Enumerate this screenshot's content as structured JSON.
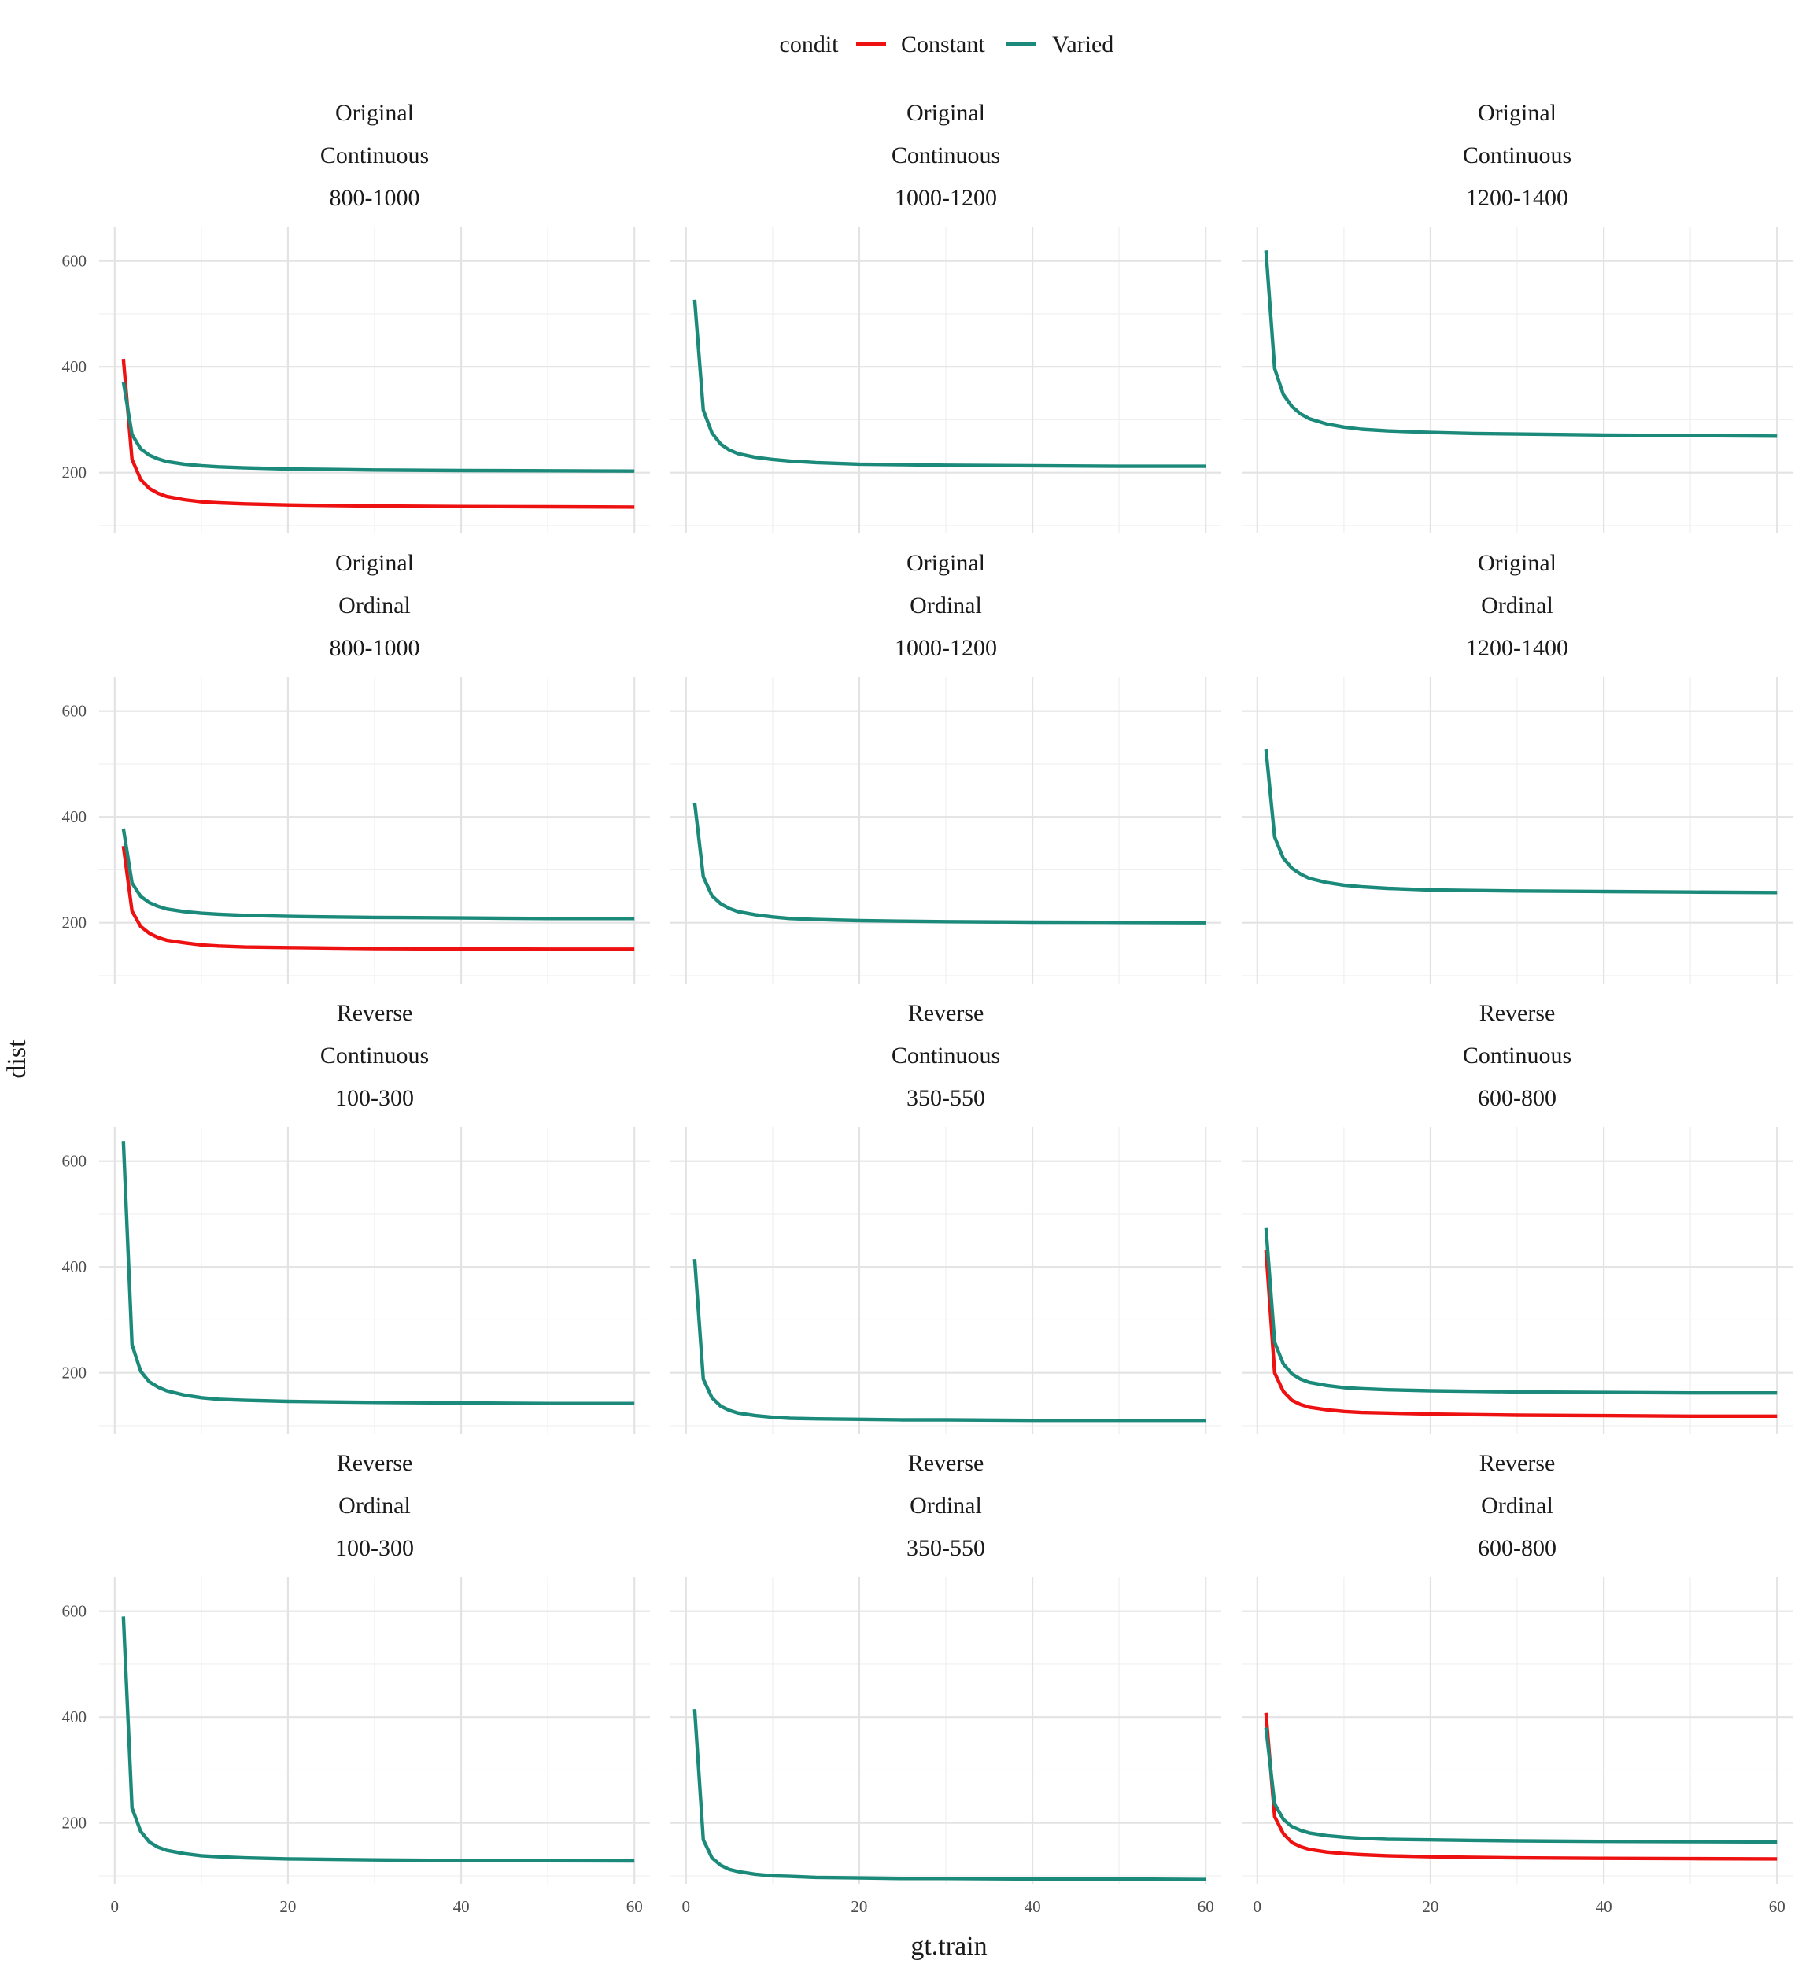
{
  "legend": {
    "title": "condit",
    "entries": [
      {
        "label": "Constant",
        "color": "#ee1111"
      },
      {
        "label": "Varied",
        "color": "#1b8a7a"
      }
    ]
  },
  "axes": {
    "x_title": "gt.train",
    "y_title": "dist",
    "x_ticks": [
      0,
      20,
      40,
      60
    ],
    "y_ticks": [
      200,
      400,
      600
    ]
  },
  "chart_data": {
    "type": "line",
    "layout": "facet-grid 4 rows x 3 columns",
    "xlabel": "gt.train",
    "ylabel": "dist",
    "xlim": [
      -1.8,
      61.8
    ],
    "ylim": [
      85,
      665
    ],
    "grid": true,
    "legend_position": "top",
    "legend_title": "condit",
    "series_names": [
      "Constant",
      "Varied"
    ],
    "x": [
      1,
      2,
      3,
      4,
      5,
      6,
      8,
      10,
      12,
      15,
      20,
      25,
      30,
      40,
      50,
      60
    ],
    "panels": [
      {
        "strip": [
          "Original",
          "Continuous",
          "800-1000"
        ],
        "series": [
          {
            "name": "Constant",
            "values": [
              415,
              225,
              187,
              170,
              161,
              155,
              149,
              145,
              143,
              141,
              139,
              138,
              137,
              136,
              135.5,
              135
            ]
          },
          {
            "name": "Varied",
            "values": [
              372,
              272,
              245,
              233,
              226,
              221,
              216,
              213,
              211,
              209,
              207,
              206,
              205,
              204,
              203.5,
              203
            ]
          }
        ]
      },
      {
        "strip": [
          "Original",
          "Continuous",
          "1000-1200"
        ],
        "series": [
          {
            "name": "Varied",
            "values": [
              527,
              318,
              275,
              254,
              243,
              236,
              229,
              225,
              222,
              219,
              216,
              215,
              214,
              213,
              212,
              212
            ]
          }
        ]
      },
      {
        "strip": [
          "Original",
          "Continuous",
          "1200-1400"
        ],
        "series": [
          {
            "name": "Varied",
            "values": [
              620,
              397,
              348,
              325,
              311,
              302,
              292,
              286,
              282,
              279,
              276,
              274,
              273,
              271,
              270,
              269
            ]
          }
        ]
      },
      {
        "strip": [
          "Original",
          "Ordinal",
          "800-1000"
        ],
        "series": [
          {
            "name": "Constant",
            "values": [
              345,
              222,
              193,
              180,
              172,
              167,
              162,
              158,
              156,
              154,
              153,
              152,
              151,
              150.5,
              150,
              150
            ]
          },
          {
            "name": "Varied",
            "values": [
              378,
              275,
              250,
              238,
              231,
              226,
              221,
              218,
              216,
              214,
              212,
              211,
              210,
              209,
              208,
              208
            ]
          }
        ]
      },
      {
        "strip": [
          "Original",
          "Ordinal",
          "1000-1200"
        ],
        "series": [
          {
            "name": "Varied",
            "values": [
              427,
              287,
              251,
              236,
              227,
              221,
              215,
              211,
              208,
              206,
              204,
              203,
              202,
              201,
              200.5,
              200
            ]
          }
        ]
      },
      {
        "strip": [
          "Original",
          "Ordinal",
          "1200-1400"
        ],
        "series": [
          {
            "name": "Varied",
            "values": [
              528,
              362,
              322,
              303,
              292,
              284,
              276,
              271,
              268,
              265,
              262,
              261,
              260,
              259,
              258,
              257
            ]
          }
        ]
      },
      {
        "strip": [
          "Reverse",
          "Continuous",
          "100-300"
        ],
        "series": [
          {
            "name": "Varied",
            "values": [
              638,
              253,
              203,
              183,
              173,
              166,
              158,
              153,
              150,
              148,
              146,
              145,
              144,
              143,
              142,
              142
            ]
          }
        ]
      },
      {
        "strip": [
          "Reverse",
          "Continuous",
          "350-550"
        ],
        "series": [
          {
            "name": "Varied",
            "values": [
              415,
              188,
              153,
              137,
              129,
              124,
              119,
              116,
              114,
              113,
              112,
              111,
              111,
              110,
              110,
              110
            ]
          }
        ]
      },
      {
        "strip": [
          "Reverse",
          "Continuous",
          "600-800"
        ],
        "series": [
          {
            "name": "Constant",
            "values": [
              433,
              200,
              165,
              148,
              140,
              135,
              130,
              127,
              125,
              124,
              122,
              121,
              120,
              119,
              118,
              118
            ]
          },
          {
            "name": "Varied",
            "values": [
              475,
              258,
              217,
              198,
              188,
              182,
              176,
              172,
              170,
              168,
              166,
              165,
              164,
              163,
              162,
              162
            ]
          }
        ]
      },
      {
        "strip": [
          "Reverse",
          "Ordinal",
          "100-300"
        ],
        "series": [
          {
            "name": "Varied",
            "values": [
              590,
              228,
              184,
              164,
              154,
              148,
              142,
              138,
              136,
              134,
              132,
              131,
              130,
              129,
              128.5,
              128
            ]
          }
        ]
      },
      {
        "strip": [
          "Reverse",
          "Ordinal",
          "350-550"
        ],
        "series": [
          {
            "name": "Varied",
            "values": [
              415,
              168,
              134,
              120,
              112,
              108,
              103,
              100,
              99,
              97,
              96,
              95,
              95,
              94,
              94,
              93
            ]
          }
        ]
      },
      {
        "strip": [
          "Reverse",
          "Ordinal",
          "600-800"
        ],
        "series": [
          {
            "name": "Constant",
            "values": [
              408,
              212,
              180,
              163,
              155,
              150,
              145,
              142,
              140,
              138,
              136,
              135,
              134,
              133,
              132.5,
              132
            ]
          },
          {
            "name": "Varied",
            "values": [
              380,
              236,
              207,
              193,
              186,
              181,
              176,
              173,
              171,
              169,
              168,
              167,
              166,
              165,
              164.5,
              164
            ]
          }
        ]
      }
    ]
  }
}
